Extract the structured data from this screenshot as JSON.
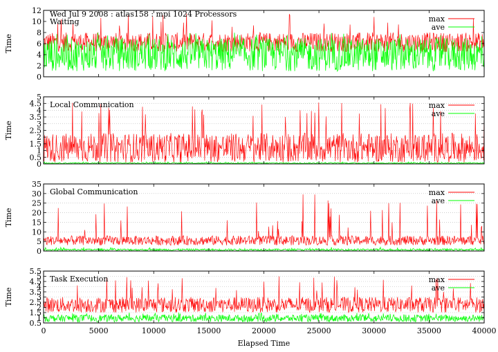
{
  "header": {
    "title": "Wed Jul 9 2008 : atlas158 : mpi 1024 Processors"
  },
  "chart_data": [
    {
      "type": "line",
      "title": "Waiting",
      "xlabel": "",
      "ylabel": "Time",
      "xlim": [
        0,
        40000
      ],
      "ylim": [
        0,
        12
      ],
      "yticks": [
        "0",
        "2",
        "4",
        "6",
        "8",
        "10",
        "12"
      ],
      "grid": false,
      "legend": "top-right",
      "series": [
        {
          "name": "max",
          "color": "#ff0000",
          "typical": [
            4.5,
            8
          ],
          "spikes": [
            9,
            11.5
          ]
        },
        {
          "name": "ave",
          "color": "#00ff00",
          "typical": [
            1,
            7
          ],
          "spikes": [
            7,
            8
          ]
        }
      ]
    },
    {
      "type": "line",
      "title": "Local Communication",
      "xlabel": "",
      "ylabel": "Time",
      "xlim": [
        0,
        40000
      ],
      "ylim": [
        0,
        5
      ],
      "yticks": [
        "0",
        "0.5",
        "1",
        "1.5",
        "2",
        "2.5",
        "3",
        "3.5",
        "4",
        "4.5",
        "5"
      ],
      "grid": true,
      "legend": "top-right",
      "series": [
        {
          "name": "max",
          "color": "#ff0000",
          "typical": [
            0.1,
            2.3
          ],
          "spikes": [
            3.5,
            4.6
          ]
        },
        {
          "name": "ave",
          "color": "#00ff00",
          "typical": [
            0.02,
            0.1
          ],
          "spikes": [
            0.1,
            0.15
          ]
        }
      ]
    },
    {
      "type": "line",
      "title": "Global Communication",
      "xlabel": "",
      "ylabel": "Time",
      "xlim": [
        0,
        40000
      ],
      "ylim": [
        0,
        35
      ],
      "yticks": [
        "0",
        "5",
        "10",
        "15",
        "20",
        "25",
        "30",
        "35"
      ],
      "grid": true,
      "legend": "top-right",
      "series": [
        {
          "name": "max",
          "color": "#ff0000",
          "typical": [
            3,
            8
          ],
          "spikes": [
            10,
            30
          ]
        },
        {
          "name": "ave",
          "color": "#00ff00",
          "typical": [
            0.2,
            1.2
          ],
          "spikes": [
            1.2,
            2
          ]
        }
      ]
    },
    {
      "type": "line",
      "title": "Task Execution",
      "xlabel": "Elapsed Time",
      "ylabel": "Time",
      "xlim": [
        0,
        40000
      ],
      "ylim": [
        0.5,
        5.5
      ],
      "yticks": [
        "0.5",
        "1",
        "1.5",
        "2",
        "2.5",
        "3",
        "3.5",
        "4",
        "4.5",
        "5",
        "5.5"
      ],
      "xticks": [
        "0",
        "5000",
        "10000",
        "15000",
        "20000",
        "25000",
        "30000",
        "35000",
        "40000"
      ],
      "grid": true,
      "legend": "top-right",
      "series": [
        {
          "name": "max",
          "color": "#ff0000",
          "typical": [
            1.5,
            3
          ],
          "spikes": [
            3.5,
            5
          ]
        },
        {
          "name": "ave",
          "color": "#00ff00",
          "typical": [
            0.6,
            1.3
          ],
          "spikes": [
            1.3,
            1.5
          ]
        }
      ]
    }
  ]
}
